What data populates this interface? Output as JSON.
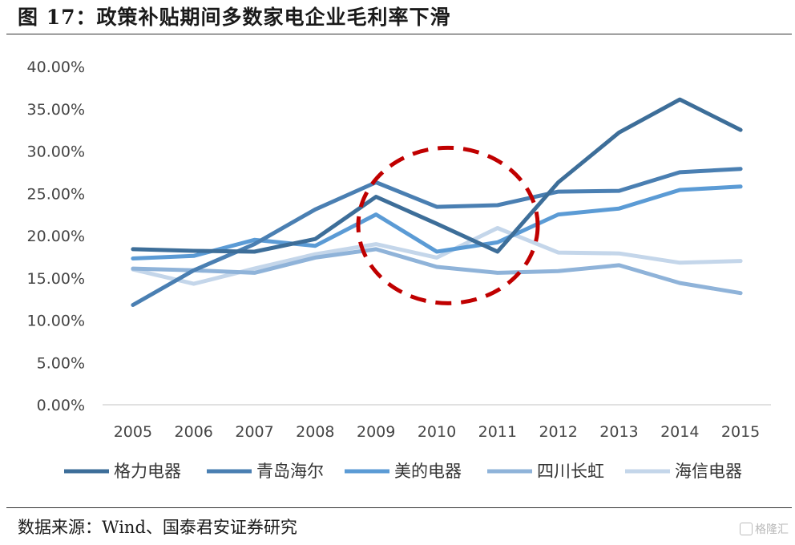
{
  "header": {
    "title": "图 17：政策补贴期间多数家电企业毛利率下滑"
  },
  "footer": {
    "source": "数据来源：Wind、国泰君安证券研究",
    "watermark": "格隆汇"
  },
  "chart_data": {
    "type": "line",
    "title": "",
    "xlabel": "",
    "ylabel": "",
    "x": [
      "2005",
      "2006",
      "2007",
      "2008",
      "2009",
      "2010",
      "2011",
      "2012",
      "2013",
      "2014",
      "2015"
    ],
    "ylim": [
      0,
      40
    ],
    "y_ticks": [
      0,
      5,
      10,
      15,
      20,
      25,
      30,
      35,
      40
    ],
    "y_tick_labels": [
      "0.00%",
      "5.00%",
      "10.00%",
      "15.00%",
      "20.00%",
      "25.00%",
      "30.00%",
      "35.00%",
      "40.00%"
    ],
    "y_unit": "%",
    "grid": false,
    "legend_position": "bottom",
    "series": [
      {
        "name": "格力电器",
        "color": "#3d6e99",
        "values": [
          18.4,
          18.2,
          18.1,
          19.6,
          24.6,
          21.4,
          18.1,
          26.3,
          32.2,
          36.1,
          32.5
        ]
      },
      {
        "name": "青岛海尔",
        "color": "#4a7fb2",
        "values": [
          11.8,
          15.9,
          19.0,
          23.1,
          26.3,
          23.4,
          23.6,
          25.2,
          25.3,
          27.5,
          27.9
        ]
      },
      {
        "name": "美的电器",
        "color": "#5b9bd5",
        "values": [
          17.3,
          17.6,
          19.5,
          18.8,
          22.5,
          18.1,
          19.2,
          22.5,
          23.2,
          25.4,
          25.8
        ]
      },
      {
        "name": "四川长虹",
        "color": "#8fb3d9",
        "values": [
          16.1,
          15.9,
          15.6,
          17.4,
          18.4,
          16.3,
          15.6,
          15.8,
          16.5,
          14.4,
          13.2
        ]
      },
      {
        "name": "海信电器",
        "color": "#c4d6ea",
        "values": [
          16.0,
          14.3,
          16.1,
          17.8,
          19.0,
          17.4,
          20.9,
          18.0,
          17.9,
          16.8,
          17.0
        ]
      }
    ],
    "annotation": {
      "type": "dashed-ellipse",
      "color": "#c00000",
      "x_center": "2010",
      "y_center": 21.2
    }
  }
}
